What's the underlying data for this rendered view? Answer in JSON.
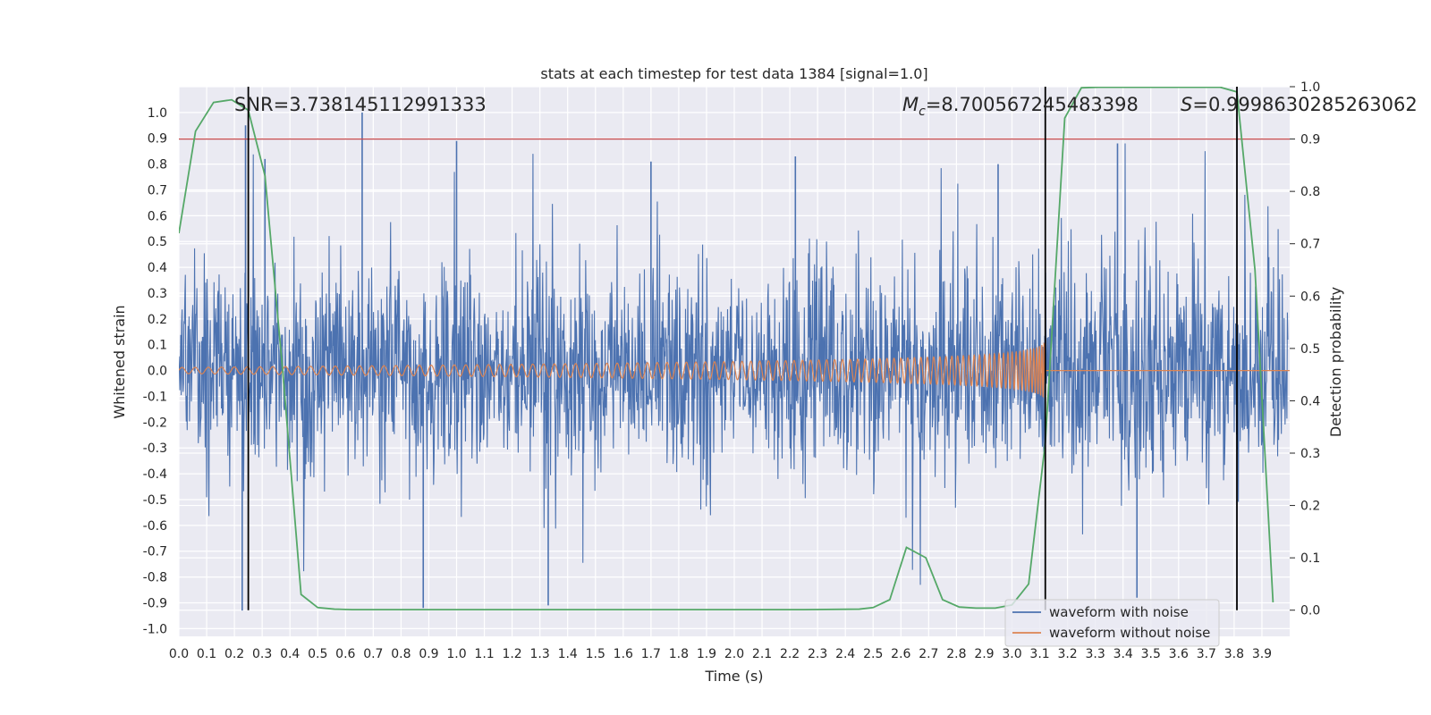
{
  "chart_data": {
    "type": "line",
    "title": "stats at each timestep for test data 1384 [signal=1.0]",
    "xlabel": "Time (s)",
    "ylabel": "Whitened strain",
    "y2label": "Detection probability",
    "xlim": [
      0.0,
      4.0
    ],
    "ylim": [
      -1.03,
      1.1
    ],
    "y2lim": [
      -0.05,
      1.0
    ],
    "x_ticks": [
      0.0,
      0.1,
      0.2,
      0.3,
      0.4,
      0.5,
      0.6,
      0.7,
      0.8,
      0.9,
      1.0,
      1.1,
      1.2,
      1.3,
      1.4,
      1.5,
      1.6,
      1.7,
      1.8,
      1.9,
      2.0,
      2.1,
      2.2,
      2.3,
      2.4,
      2.5,
      2.6,
      2.7,
      2.8,
      2.9,
      3.0,
      3.1,
      3.2,
      3.3,
      3.4,
      3.5,
      3.6,
      3.7,
      3.8,
      3.9
    ],
    "y_ticks": [
      1.0,
      0.9,
      0.8,
      0.7,
      0.6,
      0.5,
      0.4,
      0.3,
      0.2,
      0.1,
      0.0,
      -0.1,
      -0.2,
      -0.3,
      -0.4,
      -0.5,
      -0.6,
      -0.7,
      -0.8,
      -0.9,
      -1.0
    ],
    "y2_ticks": [
      1.0,
      0.9,
      0.8,
      0.7,
      0.6,
      0.5,
      0.4,
      0.3,
      0.2,
      0.1,
      0.0
    ],
    "annotations": {
      "snr": "SNR=3.738145112991333",
      "mc_symbol": "M",
      "mc_sub": "c",
      "mc_value": "=8.700567245483398",
      "s_symbol": "S",
      "s_value": "=0.9998630285263062"
    },
    "threshold_line": {
      "axis": "y2",
      "value": 0.9,
      "color": "#c44e52"
    },
    "vertical_lines": [
      0.25,
      3.12,
      3.81
    ],
    "series": [
      {
        "name": "waveform with noise",
        "color": "#4c72b0",
        "generator": "white noise, amplitude envelope approx 0.45, peaks reaching 1.0 and -0.93",
        "peaks": [
          [
            0.228,
            -0.93
          ],
          [
            0.24,
            0.95
          ],
          [
            0.31,
            0.82
          ],
          [
            0.66,
            1.0
          ],
          [
            0.88,
            -0.92
          ],
          [
            1.0,
            0.89
          ],
          [
            1.33,
            -0.91
          ],
          [
            1.7,
            0.81
          ],
          [
            2.22,
            0.83
          ],
          [
            2.95,
            0.8
          ],
          [
            3.38,
            0.88
          ],
          [
            3.45,
            -0.88
          ]
        ]
      },
      {
        "name": "waveform without noise",
        "color": "#dd8452",
        "generator": "chirp, amplitude rising from 0.012 to 0.11, frequency rising to merger at 3.12 s, then flat at 0",
        "merger_time": 3.12
      },
      {
        "name": "detection probability",
        "color": "#55a868",
        "axis": "y2",
        "x": [
          0.0,
          0.06,
          0.125,
          0.19,
          0.25,
          0.31,
          0.375,
          0.44,
          0.5,
          0.56,
          0.625,
          0.69,
          0.75,
          0.81,
          0.875,
          0.94,
          1.0,
          1.25,
          1.5,
          1.75,
          2.0,
          2.25,
          2.45,
          2.5,
          2.56,
          2.62,
          2.69,
          2.75,
          2.81,
          2.87,
          2.94,
          3.0,
          3.06,
          3.12,
          3.19,
          3.25,
          3.31,
          3.375,
          3.44,
          3.5,
          3.56,
          3.625,
          3.69,
          3.75,
          3.81,
          3.875,
          3.94
        ],
        "y": [
          0.72,
          0.915,
          0.97,
          0.975,
          0.955,
          0.83,
          0.45,
          0.03,
          0.005,
          0.002,
          0.001,
          0.001,
          0.001,
          0.001,
          0.001,
          0.001,
          0.001,
          0.001,
          0.001,
          0.001,
          0.001,
          0.001,
          0.002,
          0.005,
          0.02,
          0.12,
          0.1,
          0.02,
          0.006,
          0.004,
          0.004,
          0.01,
          0.05,
          0.32,
          0.94,
          0.998,
          0.999,
          0.999,
          0.999,
          0.999,
          0.999,
          0.999,
          0.999,
          0.999,
          0.99,
          0.65,
          0.015
        ]
      }
    ],
    "legend": {
      "position": "bottom-right",
      "entries": [
        {
          "label": "waveform with noise",
          "color": "#4c72b0"
        },
        {
          "label": "waveform without noise",
          "color": "#dd8452"
        }
      ]
    }
  }
}
